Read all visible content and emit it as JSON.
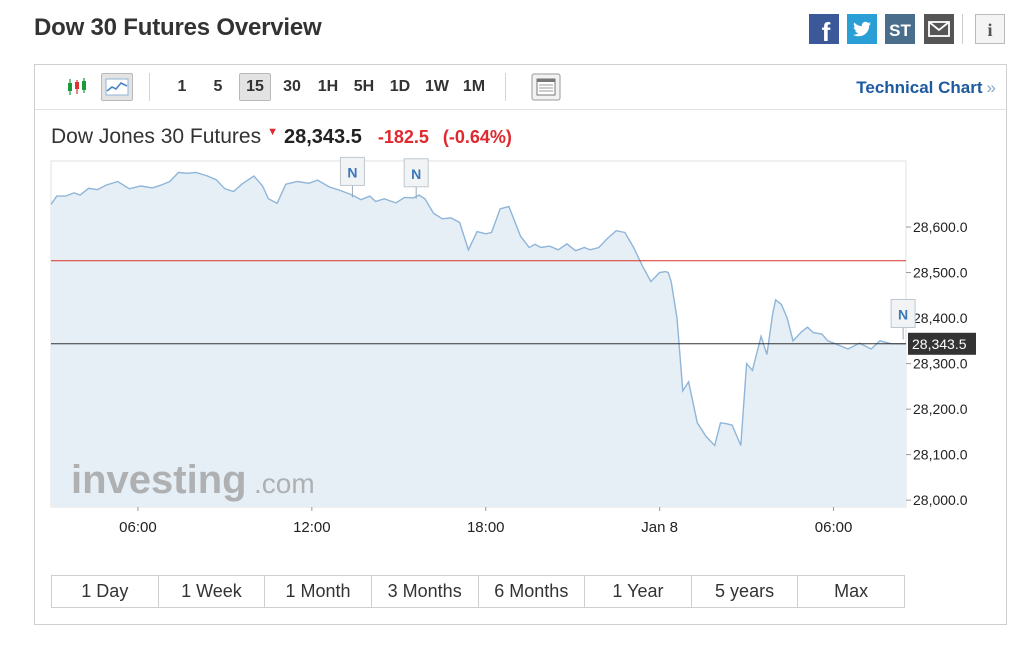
{
  "page": {
    "title": "Dow 30 Futures Overview"
  },
  "share": {
    "facebook": {
      "label": "f",
      "icon": "facebook-icon",
      "color": "#3b5998"
    },
    "twitter": {
      "icon": "twitter-icon",
      "color": "#2a9fd6"
    },
    "stocktwits": {
      "label": "ST",
      "icon": "stocktwits-icon",
      "color": "#4a6d8c"
    },
    "email": {
      "icon": "email-icon",
      "color": "#555555"
    },
    "info": {
      "label": "i",
      "icon": "info-icon",
      "color": "#555555"
    }
  },
  "toolbar": {
    "chart_types": [
      {
        "name": "candlestick",
        "icon": "candlestick-icon"
      },
      {
        "name": "line",
        "icon": "line-chart-icon",
        "active": true
      }
    ],
    "intervals": [
      "1",
      "5",
      "15",
      "30",
      "1H",
      "5H",
      "1D",
      "1W",
      "1M"
    ],
    "active_interval": "15",
    "table_icon": "table-view-icon",
    "technical_chart_label": "Technical Chart",
    "technical_chart_chevron": "»"
  },
  "quote": {
    "name": "Dow Jones 30 Futures",
    "arrow": "▼",
    "price": "28,343.5",
    "change": "-182.5",
    "change_pct": "(-0.64%)",
    "down_color": "#e0282f"
  },
  "watermark": {
    "brand": "investing",
    "suffix": ".com"
  },
  "range_tabs": [
    "1 Day",
    "1 Week",
    "1 Month",
    "3 Months",
    "6 Months",
    "1 Year",
    "5 years",
    "Max"
  ],
  "chart_data": {
    "type": "area",
    "title": "",
    "xlabel": "",
    "ylabel": "",
    "x_tick_labels": [
      {
        "label": "06:00",
        "t": 3
      },
      {
        "label": "12:00",
        "t": 9
      },
      {
        "label": "18:00",
        "t": 15
      },
      {
        "label": "Jan 8",
        "t": 21
      },
      {
        "label": "06:00",
        "t": 27
      }
    ],
    "x_unit_note": "t = hours elapsed on the time axis",
    "xlim": [
      0,
      29.5
    ],
    "ylim": [
      27985,
      28745
    ],
    "y_ticks": [
      28000,
      28100,
      28200,
      28300,
      28400,
      28500,
      28600
    ],
    "y_tick_labels": [
      "28,000.0",
      "28,100.0",
      "28,200.0",
      "28,300.0",
      "28,400.0",
      "28,500.0",
      "28,600.0"
    ],
    "grid": false,
    "colors": {
      "line": "#8fb5d8",
      "fill": "#e6eff6",
      "reference": "#d9342b",
      "current": "#333333",
      "last_label_bg": "#333333"
    },
    "reference_line": 28526,
    "current_price": 28343.5,
    "current_price_label": "28,343.5",
    "news_markers": [
      {
        "label": "N",
        "t": 10.4,
        "value": 28665
      },
      {
        "label": "N",
        "t": 12.6,
        "value": 28662
      },
      {
        "label": "N",
        "t": 29.4,
        "value": 28353
      }
    ],
    "series": [
      {
        "x": [
          0,
          0.2,
          0.5,
          0.8,
          1.0,
          1.3,
          1.6,
          1.9,
          2.3,
          2.7,
          3.1,
          3.5,
          3.8,
          4.1,
          4.4,
          4.7,
          5.0,
          5.4,
          5.7,
          6.0,
          6.3,
          6.6,
          7.0,
          7.3,
          7.5,
          7.8,
          8.1,
          8.5,
          8.9,
          9.2,
          9.6,
          10.0,
          10.4,
          10.7,
          11.0,
          11.2,
          11.5,
          11.9,
          12.2,
          12.5,
          12.7,
          12.9,
          13.2,
          13.5,
          13.8,
          14.1,
          14.4,
          14.7,
          15.0,
          15.2,
          15.5,
          15.8,
          16.2,
          16.5,
          16.7,
          16.9,
          17.2,
          17.5,
          17.8,
          18.1,
          18.4,
          18.6,
          18.9,
          19.2,
          19.5,
          19.8,
          20.1,
          20.4,
          20.7,
          21.0,
          21.2,
          21.3,
          21.4,
          21.6,
          21.7,
          21.8,
          22.0,
          22.3,
          22.6,
          22.9,
          23.1,
          23.3,
          23.5,
          23.8,
          24.0,
          24.2,
          24.5,
          24.7,
          24.9,
          25.0,
          25.2,
          25.4,
          25.6,
          25.9,
          26.1,
          26.3,
          26.6,
          26.8,
          27.2,
          27.5,
          27.9,
          28.3,
          28.6,
          29.0,
          29.3,
          29.5
        ],
        "y": [
          28650,
          28668,
          28668,
          28675,
          28670,
          28685,
          28682,
          28692,
          28700,
          28684,
          28690,
          28686,
          28692,
          28700,
          28720,
          28718,
          28720,
          28712,
          28704,
          28684,
          28678,
          28695,
          28712,
          28690,
          28662,
          28652,
          28694,
          28700,
          28696,
          28703,
          28688,
          28680,
          28670,
          28660,
          28668,
          28656,
          28662,
          28653,
          28665,
          28664,
          28670,
          28662,
          28630,
          28618,
          28620,
          28610,
          28550,
          28590,
          28585,
          28588,
          28640,
          28645,
          28580,
          28555,
          28562,
          28555,
          28558,
          28550,
          28563,
          28548,
          28555,
          28550,
          28555,
          28575,
          28592,
          28588,
          28555,
          28515,
          28480,
          28500,
          28502,
          28500,
          28480,
          28400,
          28320,
          28240,
          28260,
          28170,
          28140,
          28120,
          28170,
          28168,
          28165,
          28120,
          28300,
          28285,
          28360,
          28320,
          28410,
          28440,
          28430,
          28400,
          28350,
          28370,
          28380,
          28368,
          28365,
          28350,
          28340,
          28332,
          28345,
          28332,
          28350,
          28343.5,
          28343.5,
          28343.5
        ]
      }
    ]
  }
}
